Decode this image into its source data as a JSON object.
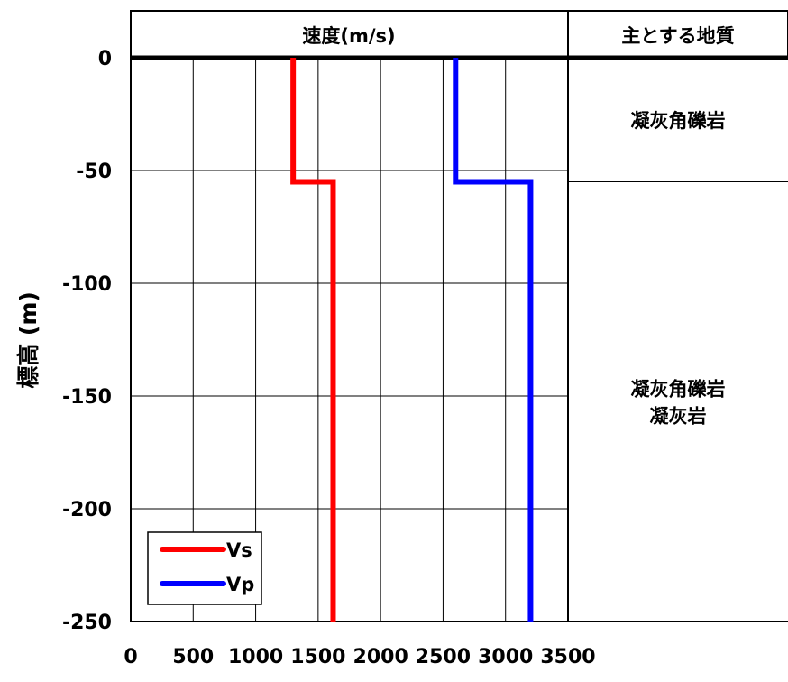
{
  "chart_data": {
    "type": "line",
    "title": "速度(m/s)",
    "xlabel": "",
    "ylabel": "標高 (m)",
    "xlim": [
      0,
      3500
    ],
    "ylim": [
      -250,
      0
    ],
    "x_ticks": [
      0,
      500,
      1000,
      1500,
      2000,
      2500,
      3000,
      3500
    ],
    "y_ticks": [
      0,
      -50,
      -100,
      -150,
      -200,
      -250
    ],
    "x_tick_labels": [
      "0",
      "500",
      "1000",
      "1500",
      "2000",
      "2500",
      "3000",
      "3500"
    ],
    "y_tick_labels": [
      "0",
      "-50",
      "-100",
      "-150",
      "-200",
      "-250"
    ],
    "grid": true,
    "legend_position": "bottom-left",
    "series": [
      {
        "name": "Vs",
        "color": "#ff0000",
        "points": [
          {
            "x": 1300,
            "y": 0
          },
          {
            "x": 1300,
            "y": -55
          },
          {
            "x": 1620,
            "y": -55
          },
          {
            "x": 1620,
            "y": -250
          }
        ]
      },
      {
        "name": "Vp",
        "color": "#0000ff",
        "points": [
          {
            "x": 2600,
            "y": 0
          },
          {
            "x": 2600,
            "y": -55
          },
          {
            "x": 3200,
            "y": -55
          },
          {
            "x": 3200,
            "y": -250
          }
        ]
      }
    ]
  },
  "geology": {
    "header": "主とする地質",
    "layers": [
      {
        "top": 0,
        "bottom": -55,
        "lines": [
          "凝灰角礫岩"
        ]
      },
      {
        "top": -55,
        "bottom": -250,
        "lines": [
          "凝灰角礫岩",
          "凝灰岩"
        ]
      }
    ]
  }
}
